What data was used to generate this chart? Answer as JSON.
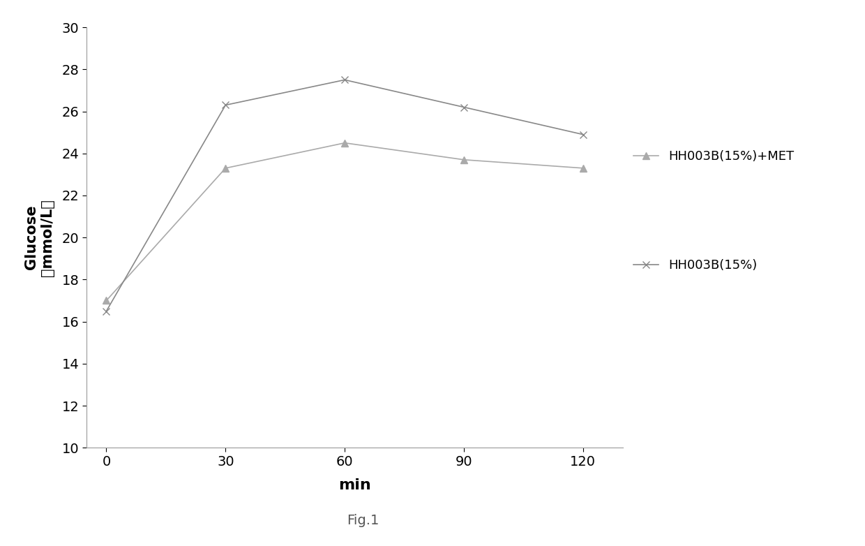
{
  "x": [
    0,
    30,
    60,
    90,
    120
  ],
  "series1_label": "HH003B(15%)+MET",
  "series1_y": [
    17.0,
    23.3,
    24.5,
    23.7,
    23.3
  ],
  "series1_color": "#aaaaaa",
  "series1_marker": "^",
  "series2_label": "HH003B(15%)",
  "series2_y": [
    16.5,
    26.3,
    27.5,
    26.2,
    24.9
  ],
  "series2_color": "#888888",
  "series2_marker": "x",
  "xlabel": "min",
  "ylabel_line1": "Glucose",
  "ylabel_line2": "（mmol/L）",
  "ylim": [
    10,
    30
  ],
  "xlim": [
    -5,
    130
  ],
  "yticks": [
    10,
    12,
    14,
    16,
    18,
    20,
    22,
    24,
    26,
    28,
    30
  ],
  "xticks": [
    0,
    30,
    60,
    90,
    120
  ],
  "fig_caption": "Fig.1",
  "background_color": "#ffffff",
  "line_width": 1.2,
  "marker_size": 7,
  "xlabel_fontsize": 16,
  "ylabel_fontsize": 15,
  "tick_fontsize": 14,
  "legend_fontsize": 13,
  "caption_fontsize": 14
}
